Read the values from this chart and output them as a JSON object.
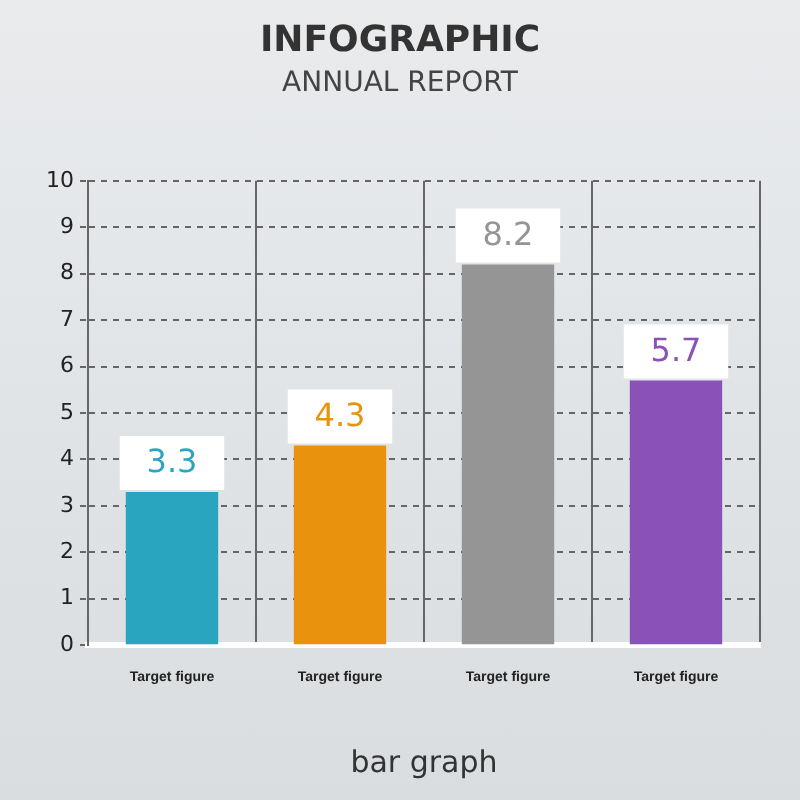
{
  "chart_data": {
    "type": "bar",
    "title": "INFOGRAPHIC",
    "subtitle": "ANNUAL REPORT",
    "xlabel": "bar graph",
    "categories": [
      "Target figure",
      "Target figure",
      "Target figure",
      "Target figure"
    ],
    "values": [
      3.3,
      4.3,
      8.2,
      5.7
    ],
    "colors": [
      "#2aa5c0",
      "#e9920e",
      "#959595",
      "#8a52b8"
    ],
    "ylim": [
      0,
      10
    ],
    "yticks": [
      0,
      1,
      2,
      3,
      4,
      5,
      6,
      7,
      8,
      9,
      10
    ],
    "grid": true,
    "data_labels": true
  }
}
